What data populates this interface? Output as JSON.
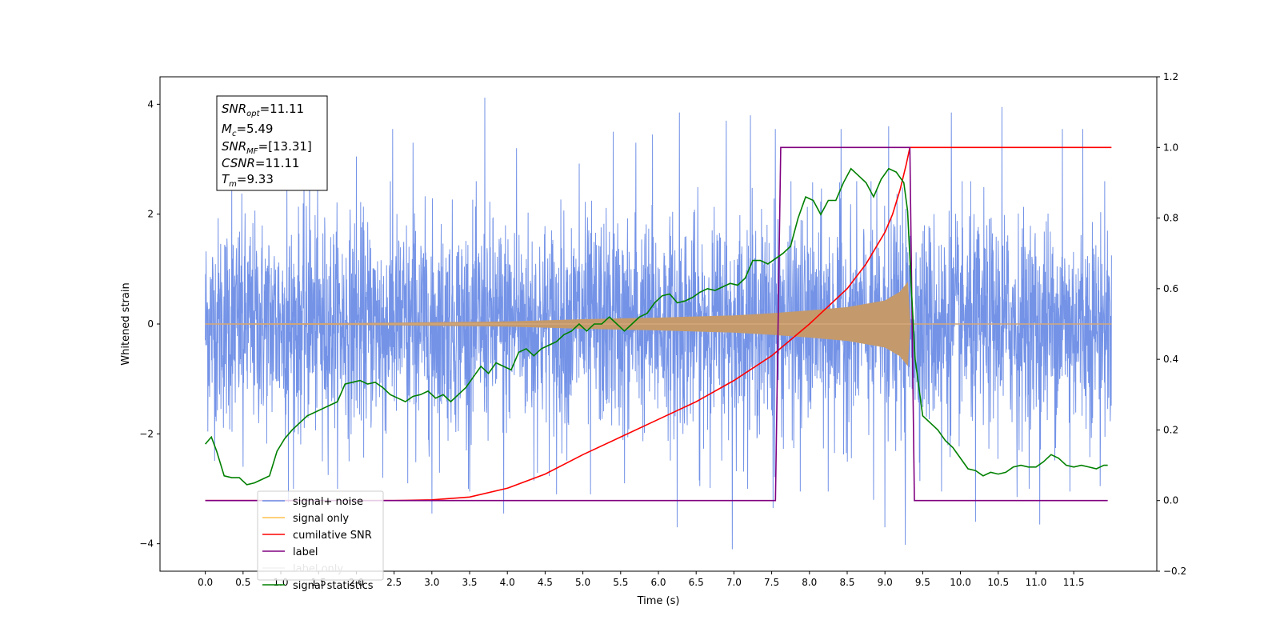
{
  "chart_data": {
    "type": "line",
    "xlabel": "Time (s)",
    "ylabel": "Whitened strain",
    "xlim": [
      -0.6,
      12.6
    ],
    "ylim": [
      -4.5,
      4.5
    ],
    "y2lim": [
      -0.2,
      1.2
    ],
    "x_ticks": [
      0.0,
      0.5,
      1.0,
      1.5,
      2.0,
      2.5,
      3.0,
      3.5,
      4.0,
      4.5,
      5.0,
      5.5,
      6.0,
      6.5,
      7.0,
      7.5,
      8.0,
      8.5,
      9.0,
      9.5,
      10.0,
      10.5,
      11.0,
      11.5
    ],
    "x_tick_labels": [
      "0.0",
      "0.5",
      "1.0",
      "1.5",
      "2.0",
      "2.5",
      "3.0",
      "3.5",
      "4.0",
      "4.5",
      "5.0",
      "5.5",
      "6.0",
      "6.5",
      "7.0",
      "7.5",
      "8.0",
      "8.5",
      "9.0",
      "9.5",
      "10.0",
      "10.5",
      "11.0",
      "11.5"
    ],
    "y_ticks": [
      -4,
      -2,
      0,
      2,
      4
    ],
    "y_tick_labels": [
      "−4",
      "−2",
      "0",
      "2",
      "4"
    ],
    "y2_ticks": [
      -0.2,
      0.0,
      0.2,
      0.4,
      0.6,
      0.8,
      1.0,
      1.2
    ],
    "y2_tick_labels": [
      "−0.2",
      "0.0",
      "0.2",
      "0.4",
      "0.6",
      "0.8",
      "1.0",
      "1.2"
    ],
    "grid": false,
    "legend_placement": "lower-left",
    "info_box": {
      "snr_opt": {
        "base": "SNR",
        "sub": "opt",
        "value": "=11.11"
      },
      "mc": {
        "base": "M",
        "sub": "c",
        "value": "=5.49"
      },
      "snr_mf": {
        "base": "SNR",
        "sub": "MF",
        "value": "=[13.31]"
      },
      "csnr": {
        "base": "CSNR",
        "sub": "",
        "value": "=11.11"
      },
      "tm": {
        "base": "T",
        "sub": "m",
        "value": "=9.33"
      }
    },
    "series": [
      {
        "name": "signal+ noise",
        "color": "#6d8de6",
        "axis": "left",
        "kind": "noise_band",
        "x_range": [
          0.0,
          12.0
        ],
        "upper_envelope_typical": 2.0,
        "lower_envelope_typical": -2.2,
        "peak_maxima": [
          {
            "x": 0.35,
            "y": 2.6
          },
          {
            "x": 1.08,
            "y": 2.8
          },
          {
            "x": 1.38,
            "y": 3.1
          },
          {
            "x": 2.0,
            "y": 3.05
          },
          {
            "x": 2.48,
            "y": 3.55
          },
          {
            "x": 2.75,
            "y": 3.3
          },
          {
            "x": 3.5,
            "y": 3.35
          },
          {
            "x": 3.7,
            "y": 4.12
          },
          {
            "x": 4.12,
            "y": 3.2
          },
          {
            "x": 4.95,
            "y": 2.92
          },
          {
            "x": 5.4,
            "y": 3.5
          },
          {
            "x": 5.7,
            "y": 3.3
          },
          {
            "x": 5.92,
            "y": 3.45
          },
          {
            "x": 6.28,
            "y": 3.85
          },
          {
            "x": 6.9,
            "y": 3.7
          },
          {
            "x": 7.22,
            "y": 3.8
          },
          {
            "x": 7.55,
            "y": 3.55
          },
          {
            "x": 8.42,
            "y": 3.55
          },
          {
            "x": 9.05,
            "y": 3.6
          },
          {
            "x": 9.88,
            "y": 3.85
          },
          {
            "x": 10.55,
            "y": 3.95
          },
          {
            "x": 11.35,
            "y": 3.55
          },
          {
            "x": 11.62,
            "y": 3.55
          }
        ],
        "peak_minima": [
          {
            "x": 0.5,
            "y": -2.6
          },
          {
            "x": 1.1,
            "y": -3.25
          },
          {
            "x": 1.55,
            "y": -2.5
          },
          {
            "x": 2.35,
            "y": -2.8
          },
          {
            "x": 2.68,
            "y": -2.9
          },
          {
            "x": 3.0,
            "y": -3.45
          },
          {
            "x": 3.5,
            "y": -3.05
          },
          {
            "x": 3.95,
            "y": -3.45
          },
          {
            "x": 4.35,
            "y": -2.85
          },
          {
            "x": 4.65,
            "y": -3.1
          },
          {
            "x": 5.1,
            "y": -3.1
          },
          {
            "x": 5.55,
            "y": -2.9
          },
          {
            "x": 6.25,
            "y": -3.7
          },
          {
            "x": 6.55,
            "y": -2.95
          },
          {
            "x": 6.98,
            "y": -4.1
          },
          {
            "x": 7.52,
            "y": -3.35
          },
          {
            "x": 7.88,
            "y": -3.05
          },
          {
            "x": 8.25,
            "y": -3.05
          },
          {
            "x": 8.85,
            "y": -3.2
          },
          {
            "x": 9.0,
            "y": -3.7
          },
          {
            "x": 9.27,
            "y": -4.02
          },
          {
            "x": 9.75,
            "y": -3.05
          },
          {
            "x": 10.2,
            "y": -3.6
          },
          {
            "x": 10.75,
            "y": -3.15
          },
          {
            "x": 11.05,
            "y": -3.65
          },
          {
            "x": 11.45,
            "y": -3.05
          },
          {
            "x": 11.85,
            "y": -2.95
          }
        ]
      },
      {
        "name": "signal only",
        "color": "#c49a6c",
        "axis": "left",
        "kind": "chirp_envelope",
        "envelope": [
          [
            0.0,
            0.0
          ],
          [
            2.0,
            0.01
          ],
          [
            4.0,
            0.04
          ],
          [
            5.0,
            0.08
          ],
          [
            6.0,
            0.11
          ],
          [
            7.0,
            0.15
          ],
          [
            7.5,
            0.19
          ],
          [
            8.0,
            0.24
          ],
          [
            8.5,
            0.3
          ],
          [
            9.0,
            0.42
          ],
          [
            9.2,
            0.58
          ],
          [
            9.3,
            0.75
          ],
          [
            9.33,
            0.0
          ],
          [
            12.0,
            0.0
          ]
        ]
      },
      {
        "name": "cumilative SNR",
        "color": "#ff0000",
        "axis": "right",
        "points": [
          [
            0.0,
            0.0
          ],
          [
            2.5,
            0.0
          ],
          [
            3.0,
            0.002
          ],
          [
            3.5,
            0.01
          ],
          [
            4.0,
            0.035
          ],
          [
            4.5,
            0.075
          ],
          [
            5.0,
            0.13
          ],
          [
            5.5,
            0.18
          ],
          [
            6.0,
            0.23
          ],
          [
            6.5,
            0.28
          ],
          [
            7.0,
            0.34
          ],
          [
            7.5,
            0.41
          ],
          [
            8.0,
            0.5
          ],
          [
            8.5,
            0.6
          ],
          [
            8.75,
            0.67
          ],
          [
            9.0,
            0.76
          ],
          [
            9.1,
            0.81
          ],
          [
            9.2,
            0.88
          ],
          [
            9.28,
            0.95
          ],
          [
            9.33,
            1.0
          ],
          [
            12.0,
            1.0
          ]
        ]
      },
      {
        "name": "label",
        "color": "#800080",
        "axis": "right",
        "points": [
          [
            0.0,
            0.0
          ],
          [
            7.55,
            0.0
          ],
          [
            7.62,
            1.0
          ],
          [
            9.33,
            1.0
          ],
          [
            9.39,
            0.0
          ],
          [
            11.95,
            0.0
          ]
        ]
      },
      {
        "name": "label only",
        "color": "#f2f2f2",
        "axis": "right",
        "points": []
      },
      {
        "name": "signal statistics",
        "color": "#008000",
        "axis": "right",
        "points": [
          [
            0.0,
            0.16
          ],
          [
            0.08,
            0.18
          ],
          [
            0.15,
            0.14
          ],
          [
            0.25,
            0.07
          ],
          [
            0.35,
            0.065
          ],
          [
            0.45,
            0.065
          ],
          [
            0.55,
            0.045
          ],
          [
            0.65,
            0.05
          ],
          [
            0.75,
            0.06
          ],
          [
            0.85,
            0.07
          ],
          [
            0.95,
            0.14
          ],
          [
            1.05,
            0.175
          ],
          [
            1.15,
            0.2
          ],
          [
            1.25,
            0.22
          ],
          [
            1.35,
            0.24
          ],
          [
            1.45,
            0.25
          ],
          [
            1.55,
            0.26
          ],
          [
            1.65,
            0.27
          ],
          [
            1.75,
            0.28
          ],
          [
            1.85,
            0.33
          ],
          [
            1.95,
            0.335
          ],
          [
            2.05,
            0.34
          ],
          [
            2.15,
            0.33
          ],
          [
            2.25,
            0.335
          ],
          [
            2.35,
            0.32
          ],
          [
            2.45,
            0.3
          ],
          [
            2.55,
            0.29
          ],
          [
            2.65,
            0.28
          ],
          [
            2.75,
            0.295
          ],
          [
            2.85,
            0.3
          ],
          [
            2.95,
            0.31
          ],
          [
            3.05,
            0.29
          ],
          [
            3.15,
            0.3
          ],
          [
            3.25,
            0.28
          ],
          [
            3.35,
            0.3
          ],
          [
            3.45,
            0.32
          ],
          [
            3.55,
            0.35
          ],
          [
            3.65,
            0.38
          ],
          [
            3.75,
            0.36
          ],
          [
            3.85,
            0.39
          ],
          [
            3.95,
            0.38
          ],
          [
            4.05,
            0.37
          ],
          [
            4.15,
            0.42
          ],
          [
            4.25,
            0.43
          ],
          [
            4.35,
            0.41
          ],
          [
            4.45,
            0.43
          ],
          [
            4.55,
            0.44
          ],
          [
            4.65,
            0.45
          ],
          [
            4.75,
            0.47
          ],
          [
            4.85,
            0.48
          ],
          [
            4.95,
            0.5
          ],
          [
            5.05,
            0.48
          ],
          [
            5.15,
            0.5
          ],
          [
            5.25,
            0.5
          ],
          [
            5.35,
            0.52
          ],
          [
            5.45,
            0.5
          ],
          [
            5.55,
            0.48
          ],
          [
            5.65,
            0.5
          ],
          [
            5.75,
            0.52
          ],
          [
            5.85,
            0.53
          ],
          [
            5.95,
            0.56
          ],
          [
            6.05,
            0.58
          ],
          [
            6.15,
            0.585
          ],
          [
            6.25,
            0.56
          ],
          [
            6.35,
            0.565
          ],
          [
            6.45,
            0.575
          ],
          [
            6.55,
            0.59
          ],
          [
            6.65,
            0.6
          ],
          [
            6.75,
            0.595
          ],
          [
            6.85,
            0.605
          ],
          [
            6.95,
            0.615
          ],
          [
            7.05,
            0.61
          ],
          [
            7.15,
            0.63
          ],
          [
            7.25,
            0.68
          ],
          [
            7.35,
            0.68
          ],
          [
            7.45,
            0.67
          ],
          [
            7.55,
            0.685
          ],
          [
            7.65,
            0.7
          ],
          [
            7.75,
            0.72
          ],
          [
            7.85,
            0.8
          ],
          [
            7.95,
            0.86
          ],
          [
            8.05,
            0.85
          ],
          [
            8.15,
            0.81
          ],
          [
            8.25,
            0.85
          ],
          [
            8.35,
            0.85
          ],
          [
            8.45,
            0.9
          ],
          [
            8.55,
            0.94
          ],
          [
            8.65,
            0.92
          ],
          [
            8.75,
            0.9
          ],
          [
            8.85,
            0.86
          ],
          [
            8.95,
            0.91
          ],
          [
            9.05,
            0.94
          ],
          [
            9.15,
            0.93
          ],
          [
            9.25,
            0.9
          ],
          [
            9.3,
            0.82
          ],
          [
            9.35,
            0.6
          ],
          [
            9.4,
            0.4
          ],
          [
            9.5,
            0.24
          ],
          [
            9.6,
            0.22
          ],
          [
            9.7,
            0.2
          ],
          [
            9.8,
            0.17
          ],
          [
            9.9,
            0.15
          ],
          [
            10.0,
            0.12
          ],
          [
            10.1,
            0.09
          ],
          [
            10.2,
            0.085
          ],
          [
            10.3,
            0.07
          ],
          [
            10.4,
            0.08
          ],
          [
            10.5,
            0.075
          ],
          [
            10.6,
            0.08
          ],
          [
            10.7,
            0.095
          ],
          [
            10.8,
            0.1
          ],
          [
            10.9,
            0.095
          ],
          [
            11.0,
            0.095
          ],
          [
            11.1,
            0.11
          ],
          [
            11.2,
            0.13
          ],
          [
            11.3,
            0.12
          ],
          [
            11.4,
            0.1
          ],
          [
            11.5,
            0.095
          ],
          [
            11.6,
            0.1
          ],
          [
            11.7,
            0.095
          ],
          [
            11.8,
            0.09
          ],
          [
            11.9,
            0.1
          ],
          [
            11.95,
            0.1
          ]
        ]
      }
    ]
  }
}
